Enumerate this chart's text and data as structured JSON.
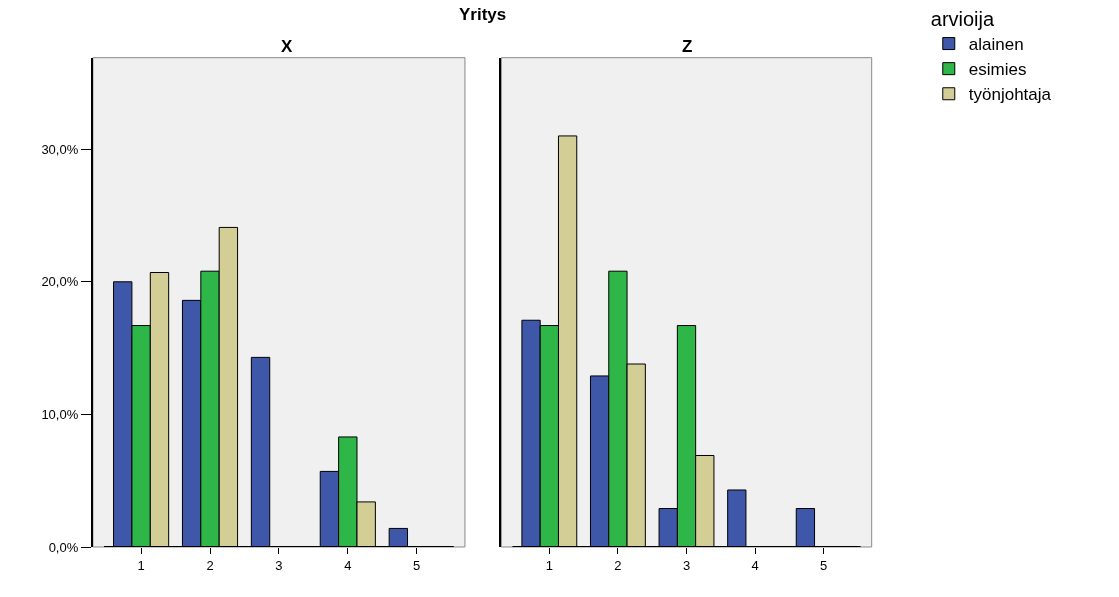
{
  "chart_data": [
    {
      "type": "bar",
      "title": "X",
      "annotations": [
        "Yritys"
      ],
      "xlabel": null,
      "categories": [
        "1",
        "2",
        "3",
        "4",
        "5"
      ],
      "legend": "top right",
      "legend_title": "arvioija",
      "ylim": [
        0,
        36.9
      ],
      "yticks": [
        {
          "value": 0,
          "label": "0,0%"
        },
        {
          "value": 10,
          "label": "10,0%"
        },
        {
          "value": 20,
          "label": "20,0%"
        },
        {
          "value": 30,
          "label": "30,0%"
        }
      ],
      "grid": false,
      "series": [
        {
          "name": "alainen",
          "color": "#3f57a8",
          "values": [
            20.0,
            18.6,
            14.3,
            5.7,
            1.4
          ]
        },
        {
          "name": "esimies",
          "color": "#2fb648",
          "values": [
            16.7,
            20.8,
            0,
            8.3,
            0
          ]
        },
        {
          "name": "työnjohtaja",
          "color": "#d3cd96",
          "values": [
            20.7,
            24.1,
            0,
            3.4,
            0
          ]
        }
      ]
    },
    {
      "type": "bar",
      "title": "Z",
      "categories": [
        "1",
        "2",
        "3",
        "4",
        "5"
      ],
      "ylim": [
        0,
        36.9
      ],
      "tick_labels": "x",
      "grid": false,
      "series": [
        {
          "color": "#3f57a8",
          "values": [
            17.1,
            12.9,
            2.9,
            4.3,
            2.9
          ]
        },
        {
          "color": "#2fb648",
          "values": [
            16.7,
            20.8,
            16.7,
            0,
            0
          ]
        },
        {
          "color": "#d3cd96",
          "values": [
            31.0,
            13.8,
            6.9,
            0,
            0
          ]
        }
      ]
    }
  ]
}
